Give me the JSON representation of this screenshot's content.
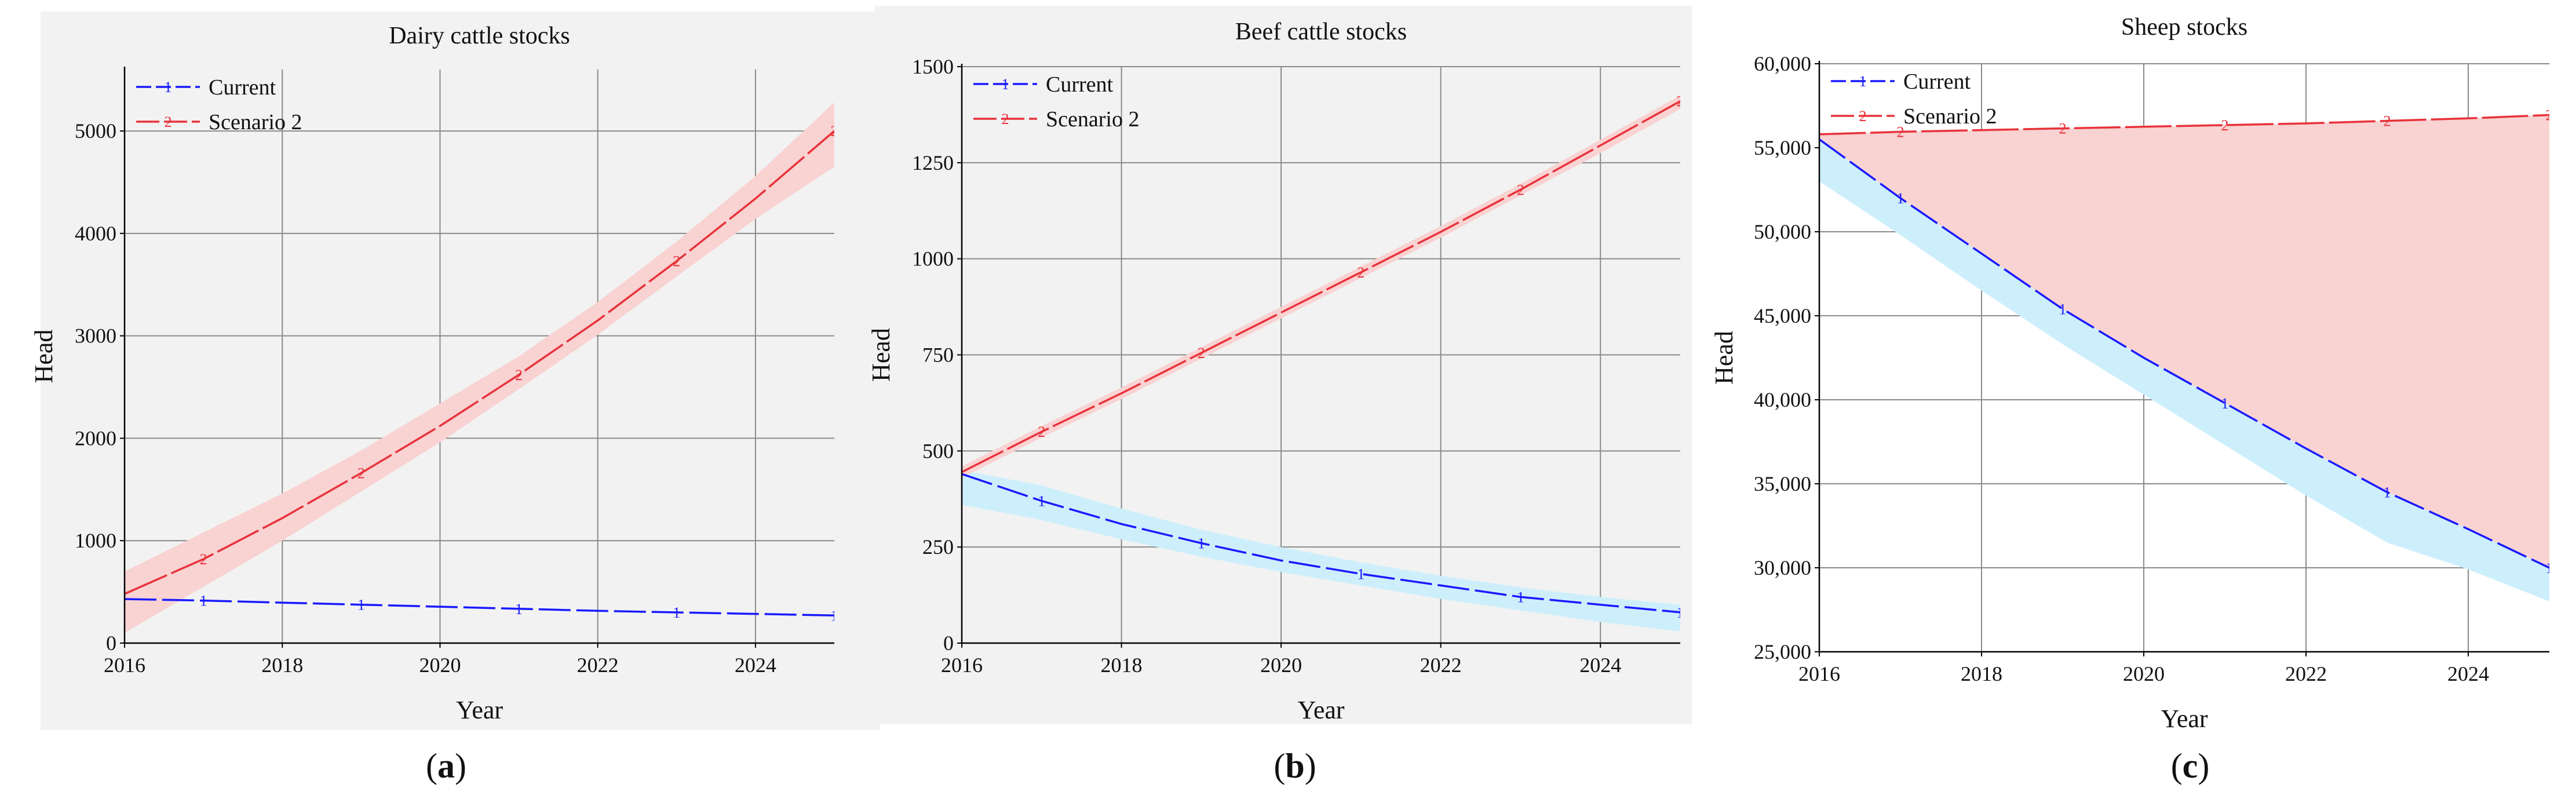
{
  "figure": {
    "panel_labels": [
      "(a)",
      "(b)",
      "(c)"
    ]
  },
  "colors": {
    "current_line": "#1a1aff",
    "current_band": "#cdeffc",
    "scenario_line": "#e8323a",
    "scenario_band": "#f9d2d2",
    "grid": "#8a8a8a",
    "plot_bg_ab": "#f2f2f2",
    "plot_bg_c": "#ffffff"
  },
  "chart_data": [
    {
      "type": "line",
      "title": "Dairy cattle stocks",
      "xlabel": "Year",
      "ylabel": "Head",
      "xlim": [
        2016,
        2025
      ],
      "ylim": [
        0,
        5600
      ],
      "x_ticks": [
        2016,
        2018,
        2020,
        2022,
        2024
      ],
      "y_ticks": [
        0,
        1000,
        2000,
        3000,
        4000,
        5000
      ],
      "y_tick_labels": [
        "0",
        "1000",
        "2000",
        "3000",
        "4000",
        "5000"
      ],
      "grid": true,
      "legend_position": "top-left",
      "x": [
        2016,
        2017,
        2018,
        2019,
        2020,
        2021,
        2022,
        2023,
        2024,
        2025
      ],
      "series": [
        {
          "name": "Current",
          "marker": "1",
          "values": [
            430,
            415,
            395,
            375,
            355,
            335,
            315,
            300,
            285,
            270
          ]
        },
        {
          "name": "Scenario 2",
          "marker": "2",
          "values": [
            480,
            820,
            1220,
            1660,
            2120,
            2620,
            3150,
            3730,
            4340,
            5000
          ]
        }
      ],
      "bands": [
        {
          "series": "Scenario 2",
          "lower": [
            100,
            550,
            1000,
            1480,
            1960,
            2480,
            3010,
            3580,
            4140,
            4650
          ],
          "upper": [
            700,
            1080,
            1460,
            1880,
            2340,
            2800,
            3330,
            3920,
            4560,
            5280
          ]
        }
      ],
      "marker_x": [
        2017,
        2019,
        2021,
        2023,
        2025
      ]
    },
    {
      "type": "line",
      "title": "Beef cattle stocks",
      "xlabel": "Year",
      "ylabel": "Head",
      "xlim": [
        2016,
        2025
      ],
      "ylim": [
        0,
        1500
      ],
      "x_ticks": [
        2016,
        2018,
        2020,
        2022,
        2024
      ],
      "y_ticks": [
        0,
        250,
        500,
        750,
        1000,
        1250,
        1500
      ],
      "y_tick_labels": [
        "0",
        "250",
        "500",
        "750",
        "1000",
        "1250",
        "1500"
      ],
      "grid": true,
      "legend_position": "top-left",
      "x": [
        2016,
        2017,
        2018,
        2019,
        2020,
        2021,
        2022,
        2023,
        2024,
        2025
      ],
      "series": [
        {
          "name": "Current",
          "marker": "1",
          "values": [
            440,
            370,
            310,
            260,
            215,
            180,
            150,
            120,
            100,
            80
          ]
        },
        {
          "name": "Scenario 2",
          "marker": "2",
          "values": [
            445,
            550,
            650,
            755,
            860,
            965,
            1070,
            1180,
            1295,
            1410
          ]
        }
      ],
      "bands": [
        {
          "series": "Current",
          "lower": [
            360,
            320,
            270,
            225,
            185,
            150,
            115,
            85,
            55,
            30
          ],
          "upper": [
            450,
            410,
            350,
            295,
            250,
            210,
            175,
            145,
            120,
            100
          ]
        },
        {
          "series": "Scenario 2",
          "lower": [
            430,
            535,
            635,
            740,
            845,
            950,
            1055,
            1165,
            1275,
            1390
          ],
          "upper": [
            460,
            565,
            665,
            770,
            875,
            980,
            1085,
            1195,
            1310,
            1425
          ]
        }
      ],
      "marker_x": [
        2017,
        2019,
        2021,
        2023,
        2025
      ]
    },
    {
      "type": "line",
      "title": "Sheep stocks",
      "xlabel": "Year",
      "ylabel": "Head",
      "xlim": [
        2016,
        2025
      ],
      "ylim": [
        25000,
        60000
      ],
      "x_ticks": [
        2016,
        2018,
        2020,
        2022,
        2024
      ],
      "y_ticks": [
        25000,
        30000,
        35000,
        40000,
        45000,
        50000,
        55000,
        60000
      ],
      "y_tick_labels": [
        "25,000",
        "30,000",
        "35,000",
        "40,000",
        "45,000",
        "50,000",
        "55,000",
        "60,000"
      ],
      "grid": true,
      "legend_position": "top-left",
      "x": [
        2016,
        2017,
        2018,
        2019,
        2020,
        2021,
        2022,
        2023,
        2024,
        2025
      ],
      "series": [
        {
          "name": "Current",
          "marker": "1",
          "values": [
            55500,
            52000,
            48700,
            45400,
            42500,
            39800,
            37100,
            34500,
            32300,
            30000
          ]
        },
        {
          "name": "Scenario 2",
          "marker": "2",
          "values": [
            55800,
            55950,
            56050,
            56150,
            56250,
            56350,
            56450,
            56600,
            56750,
            56950
          ]
        }
      ],
      "bands": [
        {
          "series": "Scenario 2",
          "lower": [
            55500,
            52000,
            48700,
            45400,
            42500,
            39800,
            37100,
            34500,
            32300,
            30000
          ],
          "upper": [
            55800,
            55950,
            56050,
            56150,
            56250,
            56350,
            56450,
            56600,
            56750,
            56950
          ]
        },
        {
          "series": "Current",
          "lower": [
            53000,
            49800,
            46500,
            43300,
            40300,
            37300,
            34300,
            31500,
            29900,
            28000
          ],
          "upper": [
            55500,
            52000,
            48700,
            45400,
            42500,
            39800,
            37100,
            34500,
            32300,
            30000
          ]
        }
      ],
      "marker_x": [
        2017,
        2019,
        2021,
        2023,
        2025
      ]
    }
  ]
}
